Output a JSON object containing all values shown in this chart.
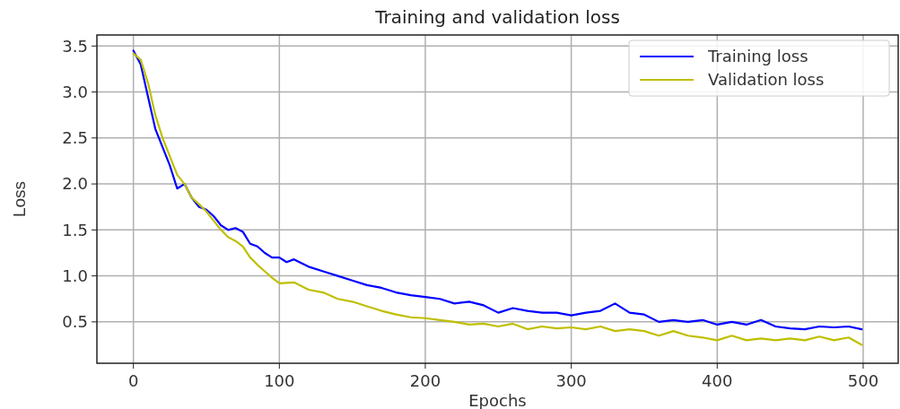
{
  "chart_data": {
    "type": "line",
    "title": "Training and validation loss",
    "xlabel": "Epochs",
    "ylabel": "Loss",
    "xlim": [
      -25,
      524
    ],
    "xticks": [
      0,
      100,
      200,
      300,
      400,
      500
    ],
    "ylim": [
      0.05,
      3.62
    ],
    "yticks": [
      {
        "value": 0.5,
        "label": "0.5"
      },
      {
        "value": 1,
        "label": "1.0"
      },
      {
        "value": 1.5,
        "label": "1.5"
      },
      {
        "value": 2,
        "label": "2.0"
      },
      {
        "value": 2.5,
        "label": "2.5"
      },
      {
        "value": 3,
        "label": "3.0"
      },
      {
        "value": 3.5,
        "label": "3.5"
      }
    ],
    "grid": true,
    "legend": "top right",
    "series": [
      {
        "name": "Training loss",
        "color": "#0000ff",
        "x": [
          0,
          5,
          10,
          15,
          20,
          25,
          30,
          35,
          40,
          45,
          50,
          55,
          60,
          65,
          70,
          75,
          80,
          85,
          90,
          95,
          100,
          105,
          110,
          120,
          130,
          140,
          150,
          160,
          170,
          180,
          190,
          200,
          210,
          220,
          230,
          240,
          250,
          260,
          270,
          280,
          290,
          300,
          310,
          320,
          330,
          340,
          350,
          360,
          370,
          380,
          390,
          400,
          410,
          420,
          430,
          440,
          450,
          460,
          470,
          480,
          490,
          499
        ],
        "values": [
          3.45,
          3.3,
          2.95,
          2.6,
          2.4,
          2.2,
          1.95,
          2.0,
          1.85,
          1.75,
          1.72,
          1.65,
          1.55,
          1.5,
          1.52,
          1.48,
          1.35,
          1.32,
          1.25,
          1.2,
          1.2,
          1.15,
          1.18,
          1.1,
          1.05,
          1.0,
          0.95,
          0.9,
          0.87,
          0.82,
          0.79,
          0.77,
          0.75,
          0.7,
          0.72,
          0.68,
          0.6,
          0.65,
          0.62,
          0.6,
          0.6,
          0.57,
          0.6,
          0.62,
          0.7,
          0.6,
          0.58,
          0.5,
          0.52,
          0.5,
          0.52,
          0.47,
          0.5,
          0.47,
          0.52,
          0.45,
          0.43,
          0.42,
          0.45,
          0.44,
          0.45,
          0.42
        ]
      },
      {
        "name": "Validation loss",
        "color": "#bfbf00",
        "x": [
          0,
          5,
          10,
          15,
          20,
          25,
          30,
          35,
          40,
          45,
          50,
          55,
          60,
          65,
          70,
          75,
          80,
          85,
          90,
          95,
          100,
          110,
          120,
          130,
          140,
          150,
          160,
          170,
          180,
          190,
          200,
          210,
          220,
          230,
          240,
          250,
          260,
          270,
          280,
          290,
          300,
          310,
          320,
          330,
          340,
          350,
          360,
          370,
          380,
          390,
          400,
          410,
          420,
          430,
          440,
          450,
          460,
          470,
          480,
          490,
          499
        ],
        "values": [
          3.42,
          3.35,
          3.1,
          2.75,
          2.5,
          2.3,
          2.1,
          2.0,
          1.85,
          1.78,
          1.7,
          1.6,
          1.5,
          1.42,
          1.38,
          1.32,
          1.2,
          1.12,
          1.05,
          0.98,
          0.92,
          0.93,
          0.85,
          0.82,
          0.75,
          0.72,
          0.67,
          0.62,
          0.58,
          0.55,
          0.54,
          0.52,
          0.5,
          0.47,
          0.48,
          0.45,
          0.48,
          0.42,
          0.45,
          0.43,
          0.44,
          0.42,
          0.45,
          0.4,
          0.42,
          0.4,
          0.35,
          0.4,
          0.35,
          0.33,
          0.3,
          0.35,
          0.3,
          0.32,
          0.3,
          0.32,
          0.3,
          0.34,
          0.3,
          0.33,
          0.25
        ]
      }
    ]
  }
}
